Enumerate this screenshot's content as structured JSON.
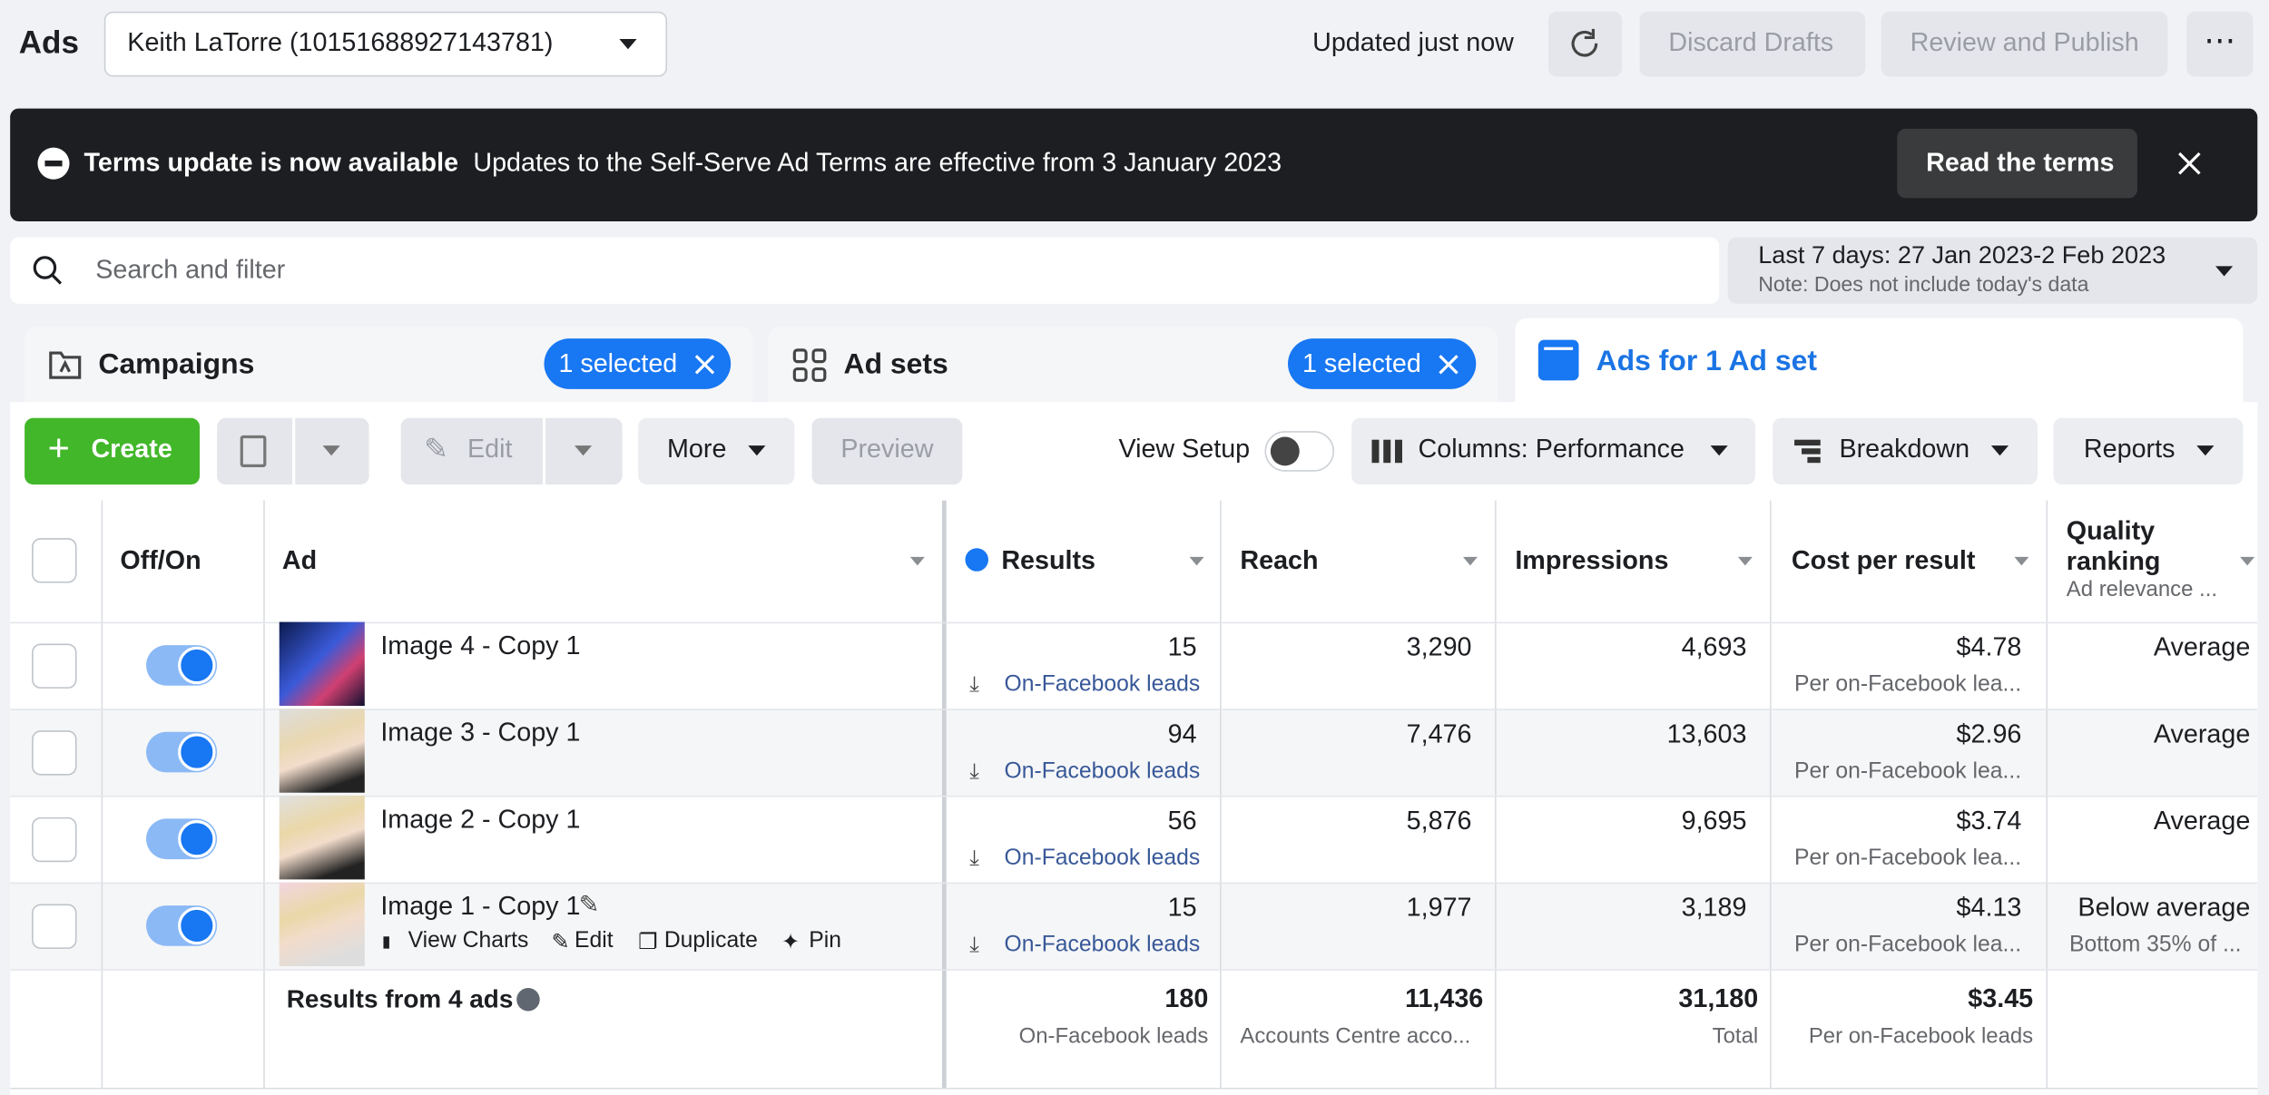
{
  "header": {
    "title": "Ads",
    "account": "Keith LaTorre (10151688927143781)",
    "status": "Updated just now",
    "discard": "Discard Drafts",
    "review": "Review and Publish"
  },
  "banner": {
    "title": "Terms update is now available",
    "text": "Updates to the Self-Serve Ad Terms are effective from 3 January 2023",
    "button": "Read the terms"
  },
  "search": {
    "placeholder": "Search and filter",
    "date_range": "Last 7 days: 27 Jan 2023-2 Feb 2023",
    "date_note": "Note: Does not include today's data"
  },
  "tabs": [
    {
      "label": "Campaigns",
      "badge": "1 selected"
    },
    {
      "label": "Ad sets",
      "badge": "1 selected"
    },
    {
      "label": "Ads for 1 Ad set"
    }
  ],
  "toolbar": {
    "create": "Create",
    "edit": "Edit",
    "more": "More",
    "preview": "Preview",
    "view_setup": "View Setup",
    "columns": "Columns: Performance",
    "breakdown": "Breakdown",
    "reports": "Reports"
  },
  "table": {
    "headers": [
      "Off/On",
      "Ad",
      "Results",
      "Reach",
      "Impressions",
      "Cost per result",
      "Quality ranking"
    ],
    "quality_sub": "Ad relevance ...",
    "rows": [
      {
        "name": "Image 4 - Copy 1",
        "results": "15",
        "result_type": "On-Facebook leads",
        "reach": "3,290",
        "impressions": "4,693",
        "cost": "$4.78",
        "cost_note": "Per on-Facebook lea...",
        "quality": "Average"
      },
      {
        "name": "Image 3 - Copy 1",
        "results": "94",
        "result_type": "On-Facebook leads",
        "reach": "7,476",
        "impressions": "13,603",
        "cost": "$2.96",
        "cost_note": "Per on-Facebook lea...",
        "quality": "Average"
      },
      {
        "name": "Image 2 - Copy 1",
        "results": "56",
        "result_type": "On-Facebook leads",
        "reach": "5,876",
        "impressions": "9,695",
        "cost": "$3.74",
        "cost_note": "Per on-Facebook lea...",
        "quality": "Average"
      },
      {
        "name": "Image 1 - Copy 1",
        "results": "15",
        "result_type": "On-Facebook leads",
        "reach": "1,977",
        "impressions": "3,189",
        "cost": "$4.13",
        "cost_note": "Per on-Facebook lea...",
        "quality": "Below average",
        "quality_note": "Bottom 35% of ..."
      }
    ],
    "row_actions": [
      "View Charts",
      "Edit",
      "Duplicate",
      "Pin"
    ],
    "totals": {
      "label": "Results from 4 ads",
      "results": "180",
      "results_note": "On-Facebook leads",
      "reach": "11,436",
      "reach_note": "Accounts Centre acco...",
      "impressions": "31,180",
      "impressions_note": "Total",
      "cost": "$3.45",
      "cost_note": "Per on-Facebook leads"
    }
  }
}
